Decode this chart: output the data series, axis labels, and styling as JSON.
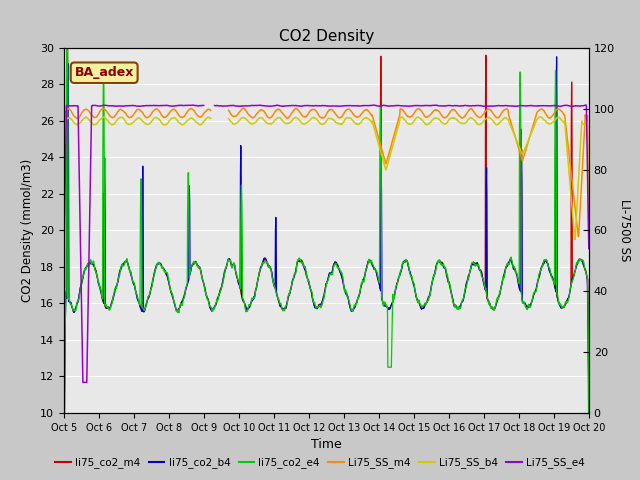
{
  "title": "CO2 Density",
  "xlabel": "Time",
  "ylabel_left": "CO2 Density (mmol/m3)",
  "ylabel_right": "LI-7500 SS",
  "ylim_left": [
    10,
    30
  ],
  "ylim_right": [
    0,
    120
  ],
  "x_tick_labels": [
    "Oct 5",
    "Oct 6",
    "Oct 7",
    "Oct 8",
    "Oct 9",
    "Oct 10",
    "Oct 11",
    "Oct 12",
    "Oct 13",
    "Oct 14",
    "Oct 15",
    "Oct 16",
    "Oct 17",
    "Oct 18",
    "Oct 19",
    "Oct 20"
  ],
  "annotation_text": "BA_adex",
  "line_colors": {
    "li75_co2_m4": "#cc0000",
    "li75_co2_b4": "#0000cc",
    "li75_co2_e4": "#00cc00",
    "Li75_SS_m4": "#ff8800",
    "Li75_SS_b4": "#cccc00",
    "Li75_SS_e4": "#9900cc"
  },
  "fig_bg_color": "#c8c8c8",
  "plot_bg_color": "#e8e8e8",
  "grid_color": "#ffffff"
}
